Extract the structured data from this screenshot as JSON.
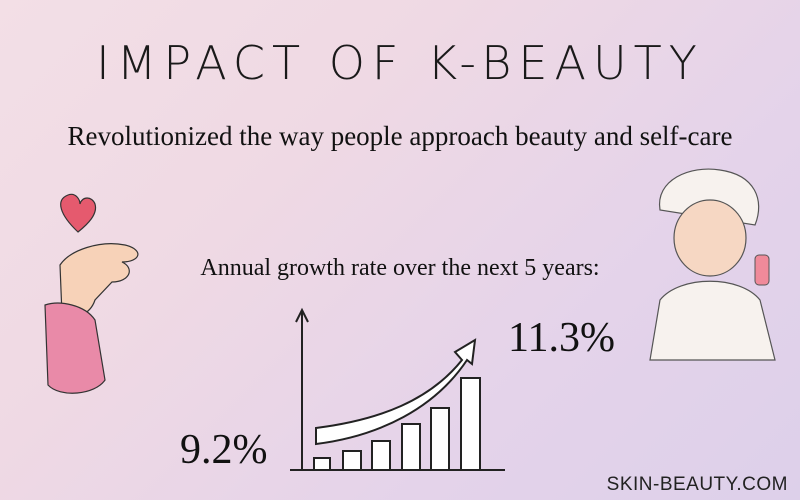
{
  "header": {
    "title": "IMPACT OF K-BEAUTY",
    "subtitle": "Revolutionized the way people approach beauty and self-care"
  },
  "stat": {
    "label": "Annual growth rate over the next 5 years:",
    "start": "9.2%",
    "end": "11.3%"
  },
  "footer": {
    "source": "SKIN-BEAUTY.COM"
  }
}
